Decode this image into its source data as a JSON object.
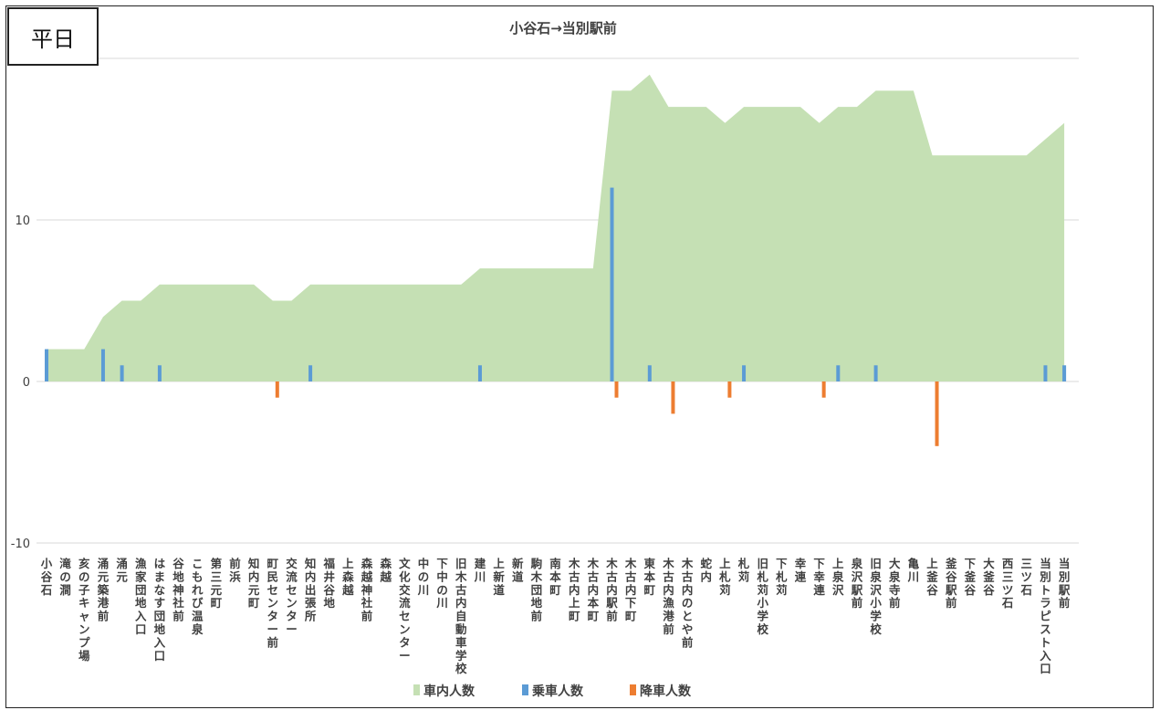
{
  "page_label": "平日",
  "chart_data": {
    "type": "area",
    "title": "小谷石→当別駅前",
    "xlabel": "",
    "ylabel": "",
    "ylim": [
      -10,
      20
    ],
    "yticks": [
      10,
      0,
      -10
    ],
    "grid": true,
    "legend_position": "bottom",
    "categories": [
      "小谷石",
      "滝の澗",
      "亥の子キャンプ場",
      "涌元築港前",
      "涌元",
      "漁家団地入口",
      "はまなす団地入口",
      "谷地神社前",
      "こもれび温泉",
      "第三元町",
      "前浜",
      "知内元町",
      "町民センター前",
      "交流センター",
      "知内出張所",
      "福井谷地",
      "上森越",
      "森越神社前",
      "森越",
      "文化交流センター",
      "中の川",
      "下中の川",
      "旧木古内自動車学校",
      "建川",
      "上新道",
      "新道",
      "駒木団地前",
      "南本町",
      "木古内上町",
      "木古内本町",
      "木古内駅前",
      "木古内下町",
      "東本町",
      "木古内漁港前",
      "木古内のとや前",
      "蛇内",
      "上札苅",
      "札苅",
      "旧札苅小学校",
      "下札苅",
      "幸連",
      "下幸連",
      "上泉沢",
      "泉沢駅前",
      "旧泉沢小学校",
      "大泉寺前",
      "亀川",
      "上釜谷",
      "釜谷駅前",
      "下釜谷",
      "大釜谷",
      "西三ツ石",
      "三ツ石",
      "当別トラピスト入口",
      "当別駅前"
    ],
    "series": [
      {
        "name": "車内人数",
        "color": "#c5e0b4",
        "kind": "area",
        "values": [
          2,
          2,
          2,
          4,
          5,
          5,
          6,
          6,
          6,
          6,
          6,
          6,
          5,
          5,
          6,
          6,
          6,
          6,
          6,
          6,
          6,
          6,
          6,
          7,
          7,
          7,
          7,
          7,
          7,
          7,
          18,
          18,
          19,
          17,
          17,
          17,
          16,
          17,
          17,
          17,
          17,
          16,
          17,
          17,
          18,
          18,
          18,
          14,
          14,
          14,
          14,
          14,
          14,
          15,
          16
        ]
      },
      {
        "name": "乗車人数",
        "color": "#5b9bd5",
        "kind": "bar",
        "values": [
          2,
          0,
          0,
          2,
          1,
          0,
          1,
          0,
          0,
          0,
          0,
          0,
          0,
          0,
          1,
          0,
          0,
          0,
          0,
          0,
          0,
          0,
          0,
          1,
          0,
          0,
          0,
          0,
          0,
          0,
          12,
          0,
          1,
          0,
          0,
          0,
          0,
          1,
          0,
          0,
          0,
          0,
          1,
          0,
          1,
          0,
          0,
          0,
          0,
          0,
          0,
          0,
          0,
          1,
          1
        ]
      },
      {
        "name": "降車人数",
        "color": "#ed7d31",
        "kind": "bar",
        "values": [
          0,
          0,
          0,
          0,
          0,
          0,
          0,
          0,
          0,
          0,
          0,
          0,
          -1,
          0,
          0,
          0,
          0,
          0,
          0,
          0,
          0,
          0,
          0,
          0,
          0,
          0,
          0,
          0,
          0,
          0,
          -1,
          0,
          0,
          -2,
          0,
          0,
          -1,
          0,
          0,
          0,
          0,
          -1,
          0,
          0,
          0,
          0,
          0,
          -4,
          0,
          0,
          0,
          0,
          0,
          0,
          0
        ]
      }
    ]
  }
}
